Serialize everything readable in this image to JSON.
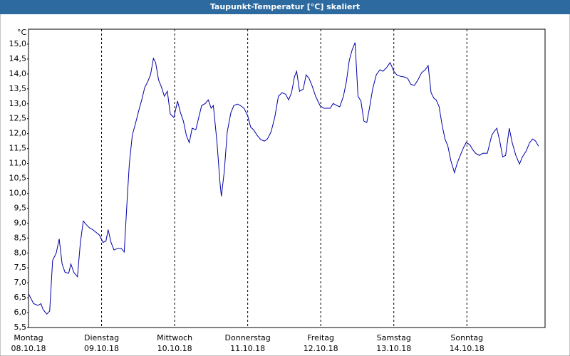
{
  "chart_data": {
    "type": "line",
    "title": "Taupunkt-Temperatur [°C] skaliert",
    "y_unit": "°C",
    "color": "#0000a8",
    "x": [
      0,
      0.07,
      0.13,
      0.17,
      0.2,
      0.25,
      0.29,
      0.33,
      0.38,
      0.42,
      0.46,
      0.5,
      0.55,
      0.58,
      0.62,
      0.67,
      0.71,
      0.75,
      0.79,
      0.84,
      0.88,
      0.93,
      0.97,
      1.02,
      1.06,
      1.09,
      1.13,
      1.17,
      1.22,
      1.27,
      1.31,
      1.35,
      1.38,
      1.42,
      1.46,
      1.51,
      1.55,
      1.59,
      1.63,
      1.67,
      1.71,
      1.74,
      1.78,
      1.82,
      1.86,
      1.9,
      1.94,
      1.99,
      2.04,
      2.08,
      2.12,
      2.16,
      2.2,
      2.24,
      2.29,
      2.33,
      2.37,
      2.42,
      2.46,
      2.5,
      2.53,
      2.58,
      2.62,
      2.64,
      2.68,
      2.72,
      2.77,
      2.81,
      2.86,
      2.9,
      2.95,
      3.0,
      3.04,
      3.08,
      3.13,
      3.18,
      3.23,
      3.27,
      3.32,
      3.37,
      3.42,
      3.47,
      3.52,
      3.56,
      3.6,
      3.64,
      3.67,
      3.71,
      3.76,
      3.8,
      3.84,
      3.88,
      3.93,
      3.99,
      4.04,
      4.08,
      4.13,
      4.17,
      4.22,
      4.26,
      4.31,
      4.35,
      4.39,
      4.43,
      4.47,
      4.51,
      4.55,
      4.59,
      4.63,
      4.67,
      4.71,
      4.76,
      4.81,
      4.85,
      4.9,
      4.95,
      5.0,
      5.04,
      5.09,
      5.14,
      5.19,
      5.23,
      5.28,
      5.33,
      5.38,
      5.43,
      5.47,
      5.51,
      5.55,
      5.58,
      5.62,
      5.66,
      5.7,
      5.74,
      5.78,
      5.83,
      5.87,
      5.91,
      5.95,
      5.99,
      6.04,
      6.08,
      6.12,
      6.17,
      6.22,
      6.28,
      6.34,
      6.37,
      6.41,
      6.45,
      6.49,
      6.53,
      6.58,
      6.62,
      6.67,
      6.72,
      6.76,
      6.81,
      6.86,
      6.9,
      6.94,
      6.98
    ],
    "values": [
      6.63,
      6.3,
      6.24,
      6.3,
      6.1,
      5.95,
      6.05,
      7.75,
      8.0,
      8.47,
      7.63,
      7.35,
      7.32,
      7.63,
      7.35,
      7.2,
      8.35,
      9.07,
      8.95,
      8.83,
      8.78,
      8.68,
      8.6,
      8.35,
      8.4,
      8.78,
      8.35,
      8.1,
      8.15,
      8.15,
      8.03,
      9.78,
      10.98,
      11.94,
      12.3,
      12.78,
      13.13,
      13.54,
      13.73,
      13.97,
      14.52,
      14.38,
      13.8,
      13.56,
      13.25,
      13.42,
      12.66,
      12.54,
      13.09,
      12.7,
      12.42,
      11.94,
      11.7,
      12.18,
      12.13,
      12.54,
      12.94,
      13.01,
      13.13,
      12.85,
      12.94,
      11.7,
      10.38,
      9.9,
      10.74,
      12.06,
      12.7,
      12.94,
      12.99,
      12.94,
      12.85,
      12.6,
      12.22,
      12.13,
      11.94,
      11.8,
      11.75,
      11.82,
      12.06,
      12.54,
      13.25,
      13.37,
      13.32,
      13.13,
      13.37,
      13.9,
      14.09,
      13.42,
      13.49,
      13.97,
      13.85,
      13.61,
      13.25,
      12.94,
      12.85,
      12.85,
      12.85,
      13.01,
      12.94,
      12.9,
      13.25,
      13.73,
      14.45,
      14.81,
      15.05,
      13.25,
      13.09,
      12.42,
      12.37,
      12.9,
      13.49,
      13.97,
      14.14,
      14.09,
      14.21,
      14.38,
      14.09,
      13.97,
      13.92,
      13.9,
      13.85,
      13.66,
      13.61,
      13.8,
      14.04,
      14.14,
      14.28,
      13.37,
      13.18,
      13.13,
      12.9,
      12.3,
      11.82,
      11.58,
      11.1,
      10.69,
      11.03,
      11.27,
      11.51,
      11.7,
      11.63,
      11.46,
      11.34,
      11.27,
      11.34,
      11.34,
      11.94,
      12.06,
      12.18,
      11.75,
      11.22,
      11.27,
      12.18,
      11.7,
      11.27,
      10.98,
      11.22,
      11.41,
      11.7,
      11.82,
      11.75,
      11.58
    ],
    "xlim": [
      0,
      7.07
    ],
    "xticks": [
      {
        "value": 0,
        "label": "Montag",
        "date": "08.10.18"
      },
      {
        "value": 1,
        "label": "Dienstag",
        "date": "09.10.18"
      },
      {
        "value": 2,
        "label": "Mittwoch",
        "date": "10.10.18"
      },
      {
        "value": 3,
        "label": "Donnerstag",
        "date": "11.10.18"
      },
      {
        "value": 4,
        "label": "Freitag",
        "date": "12.10.18"
      },
      {
        "value": 5,
        "label": "Samstag",
        "date": "13.10.18"
      },
      {
        "value": 6,
        "label": "Sonntag",
        "date": "14.10.18"
      }
    ],
    "ylim": [
      5.5,
      15.5
    ],
    "yticks": [
      {
        "value": 5.5,
        "label": "5,5"
      },
      {
        "value": 6,
        "label": "6,0"
      },
      {
        "value": 6.5,
        "label": "6,5"
      },
      {
        "value": 7,
        "label": "7,0"
      },
      {
        "value": 7.5,
        "label": "7,5"
      },
      {
        "value": 8,
        "label": "8,0"
      },
      {
        "value": 8.5,
        "label": "8,5"
      },
      {
        "value": 9,
        "label": "9,0"
      },
      {
        "value": 9.5,
        "label": "9,5"
      },
      {
        "value": 10,
        "label": "10,0"
      },
      {
        "value": 10.5,
        "label": "10,5"
      },
      {
        "value": 11,
        "label": "11,0"
      },
      {
        "value": 11.5,
        "label": "11,5"
      },
      {
        "value": 12,
        "label": "12,0"
      },
      {
        "value": 12.5,
        "label": "12,5"
      },
      {
        "value": 13,
        "label": "13,0"
      },
      {
        "value": 13.5,
        "label": "13,5"
      },
      {
        "value": 14,
        "label": "14,0"
      },
      {
        "value": 14.5,
        "label": "14,5"
      },
      {
        "value": 15,
        "label": "15,0"
      }
    ],
    "grid": "x"
  }
}
